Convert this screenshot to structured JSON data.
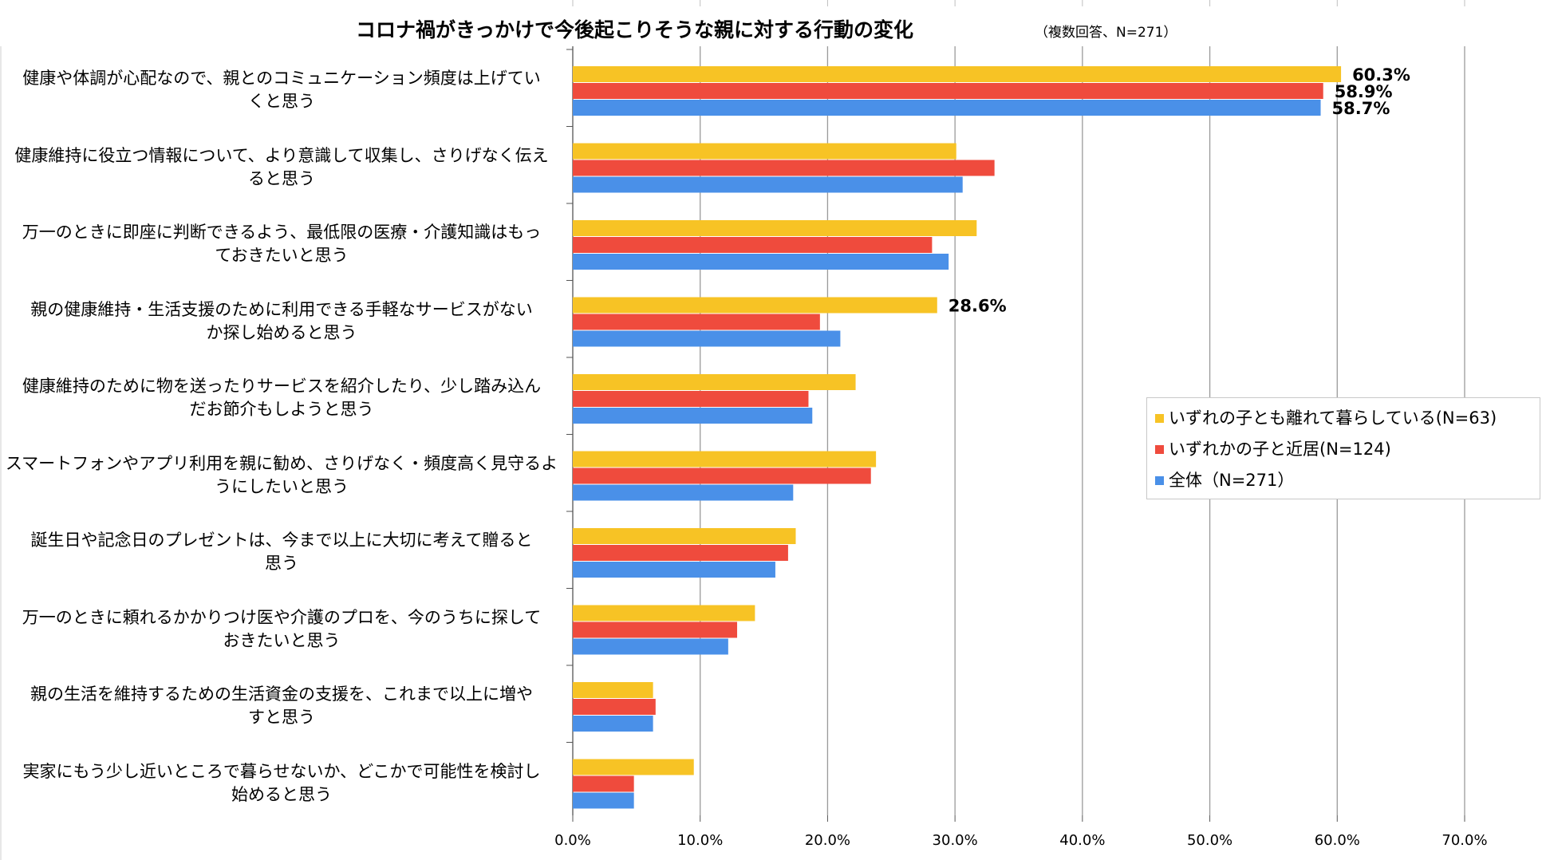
{
  "chart_data": {
    "type": "bar",
    "orientation": "horizontal",
    "title": "コロナ禍がきっかけで今後起こりそうな親に対する行動の変化",
    "subtitle": "（複数回答、N=271）",
    "categories": [
      [
        "健康や体調が心配なので、親とのコミュニケーション頻度は上げてい",
        "くと思う"
      ],
      [
        "健康維持に役立つ情報について、より意識して収集し、さりげなく伝え",
        "ると思う"
      ],
      [
        "万一のときに即座に判断できるよう、最低限の医療・介護知識はもっ",
        "ておきたいと思う"
      ],
      [
        "親の健康維持・生活支援のために利用できる手軽なサービスがない",
        "か探し始めると思う"
      ],
      [
        "健康維持のために物を送ったりサービスを紹介したり、少し踏み込ん",
        "だお節介もしようと思う"
      ],
      [
        "スマートフォンやアプリ利用を親に勧め、さりげなく・頻度高く見守るよ",
        "うにしたいと思う"
      ],
      [
        "誕生日や記念日のプレゼントは、今まで以上に大切に考えて贈ると",
        "思う"
      ],
      [
        "万一のときに頼れるかかりつけ医や介護のプロを、今のうちに探して",
        "おきたいと思う"
      ],
      [
        "親の生活を維持するための生活資金の支援を、これまで以上に増や",
        "すと思う"
      ],
      [
        "実家にもう少し近いところで暮らせないか、どこかで可能性を検討し",
        "始めると思う"
      ]
    ],
    "series": [
      {
        "name": "いずれの子とも離れて暮らしている(N=63)",
        "color": "#f7c325",
        "values": [
          60.3,
          30.1,
          31.7,
          28.6,
          22.2,
          23.8,
          17.5,
          14.3,
          6.3,
          9.5
        ]
      },
      {
        "name": "いずれかの子と近居(N=124)",
        "color": "#ef4b3d",
        "values": [
          58.9,
          33.1,
          28.2,
          19.4,
          18.5,
          23.4,
          16.9,
          12.9,
          6.5,
          4.8
        ]
      },
      {
        "name": "全体（N=271）",
        "color": "#4a90e8",
        "values": [
          58.7,
          30.6,
          29.5,
          21.0,
          18.8,
          17.3,
          15.9,
          12.2,
          6.3,
          4.8
        ]
      }
    ],
    "data_labels": [
      {
        "category_index": 0,
        "series_index": 0,
        "text": "60.3%"
      },
      {
        "category_index": 0,
        "series_index": 1,
        "text": "58.9%"
      },
      {
        "category_index": 0,
        "series_index": 2,
        "text": "58.7%"
      },
      {
        "category_index": 3,
        "series_index": 0,
        "text": "28.6%"
      }
    ],
    "xlim": [
      0,
      70
    ],
    "xticks": [
      "0.0%",
      "10.0%",
      "20.0%",
      "30.0%",
      "40.0%",
      "50.0%",
      "60.0%",
      "70.0%"
    ],
    "grid": true,
    "legend_position": "right"
  }
}
